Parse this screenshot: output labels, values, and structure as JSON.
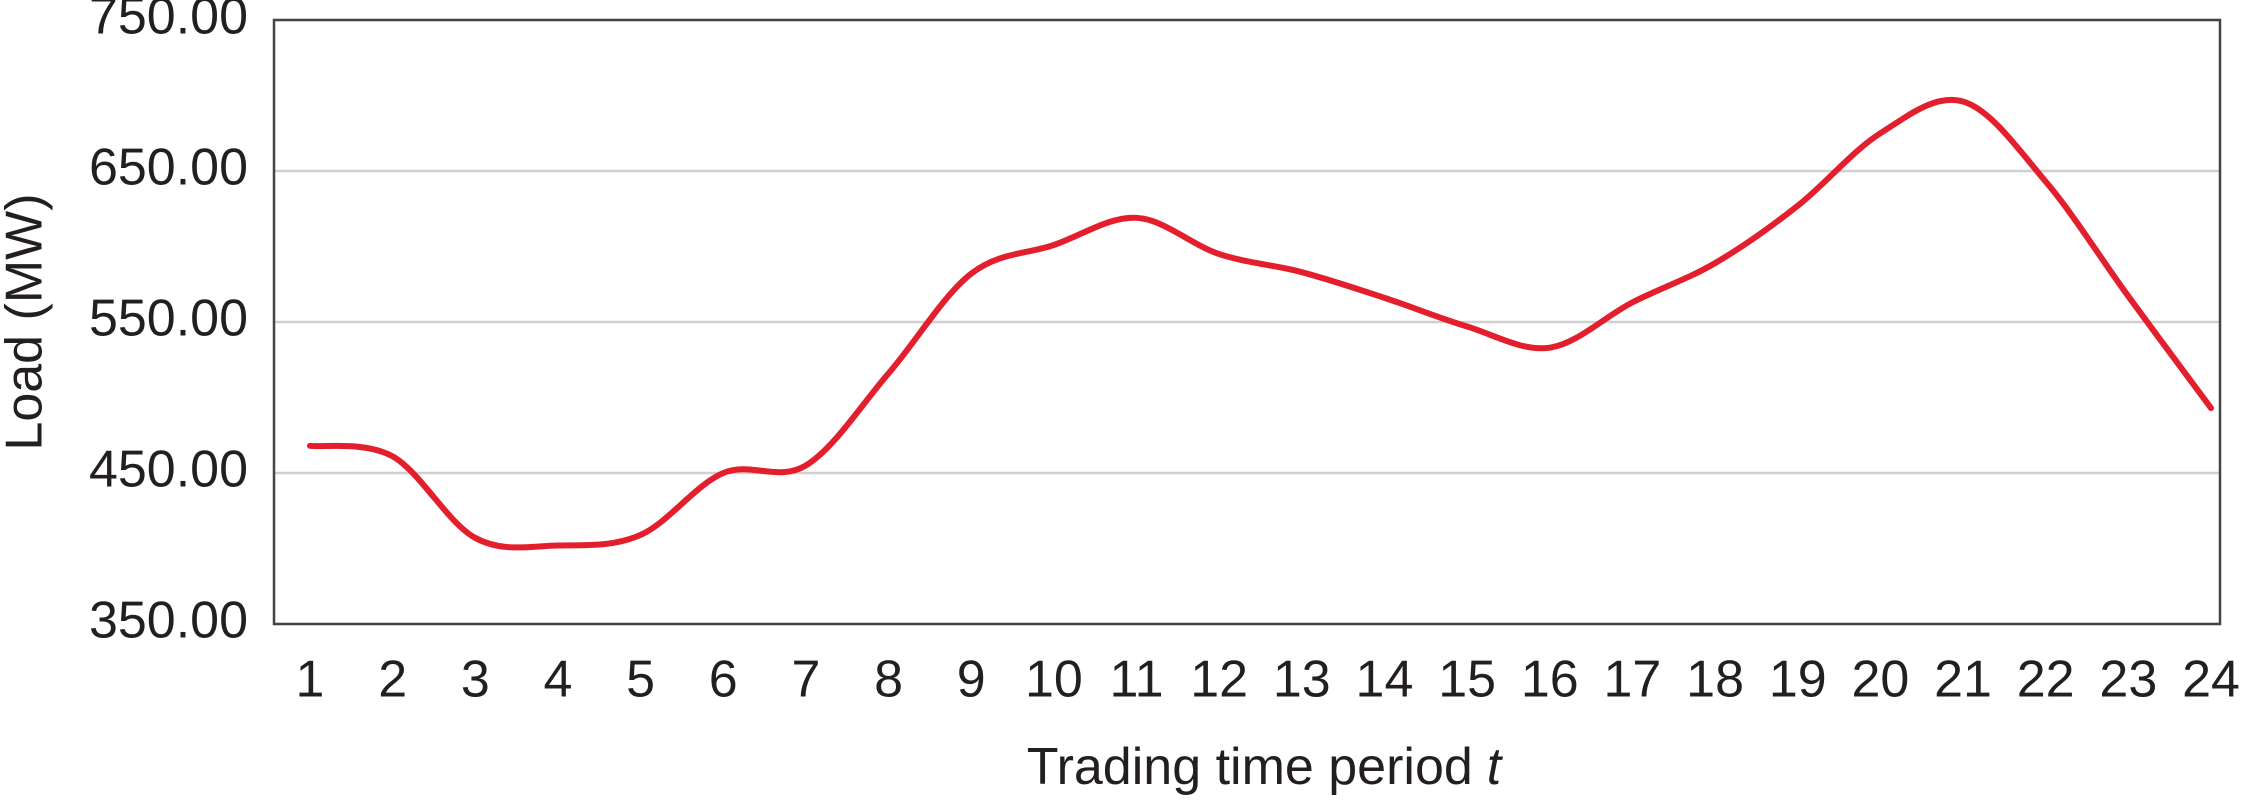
{
  "chart_data": {
    "type": "line",
    "xlabel": "Trading time period",
    "xlabel_variable": "t",
    "ylabel": "Load (MW)",
    "categories": [
      "1",
      "2",
      "3",
      "4",
      "5",
      "6",
      "7",
      "8",
      "9",
      "10",
      "11",
      "12",
      "13",
      "14",
      "15",
      "16",
      "17",
      "18",
      "19",
      "20",
      "21",
      "22",
      "23",
      "24"
    ],
    "series": [
      {
        "color": "#e31e2d",
        "values": [
          468,
          461,
          407,
          402,
          409,
          450,
          455,
          516,
          582,
          601,
          619,
          595,
          583,
          566,
          547,
          533,
          563,
          589,
          627,
          675,
          696,
          643,
          567,
          493
        ]
      }
    ],
    "ylim": [
      350,
      750
    ],
    "yticks": [
      {
        "value": 350,
        "label": "350.00"
      },
      {
        "value": 450,
        "label": "450.00"
      },
      {
        "value": 550,
        "label": "550.00"
      },
      {
        "value": 650,
        "label": "650.00"
      },
      {
        "value": 750,
        "label": "750.00"
      }
    ],
    "grid": true
  }
}
